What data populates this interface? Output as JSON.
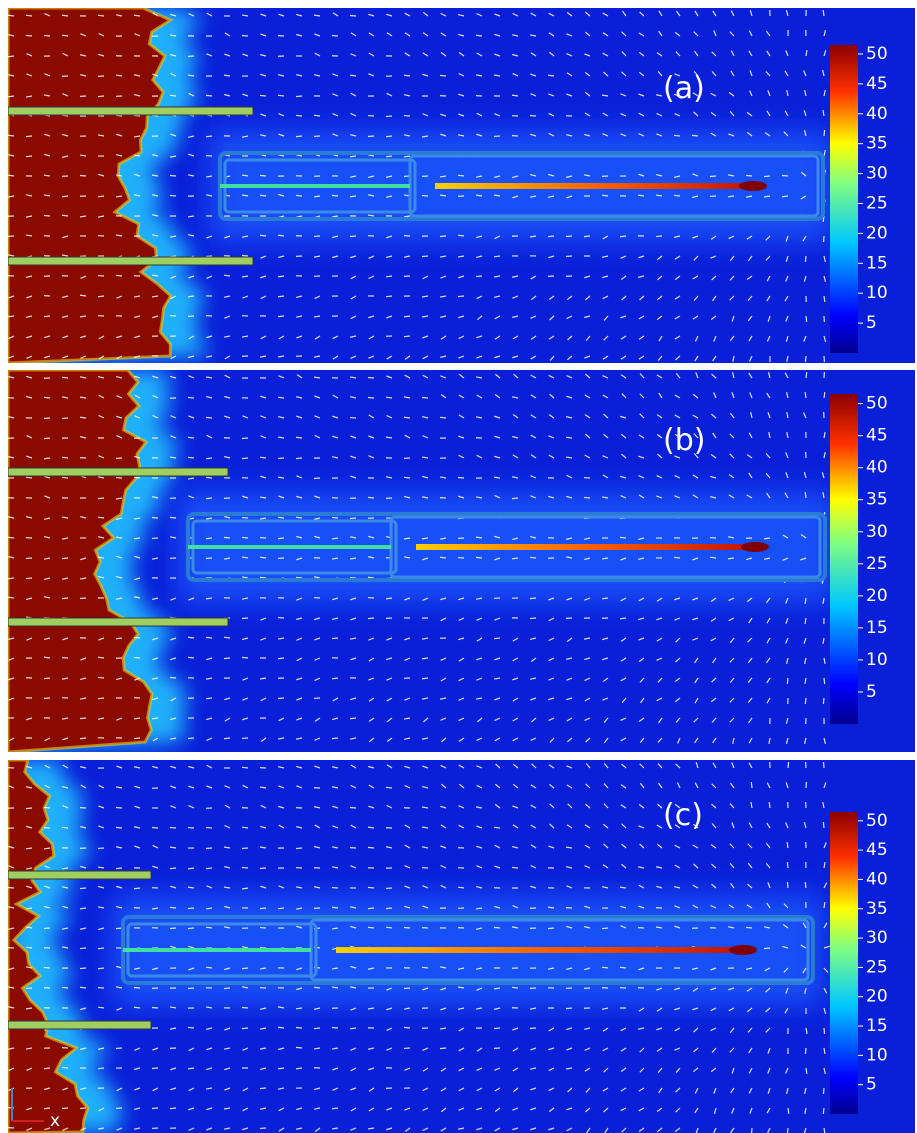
{
  "panels": [
    {
      "label": "(a)",
      "colorbar_ticks": [
        50,
        45,
        40,
        35,
        30,
        25,
        20,
        15,
        10,
        5
      ]
    },
    {
      "label": "(b)",
      "colorbar_ticks": [
        50,
        45,
        40,
        35,
        30,
        25,
        20,
        15,
        10,
        5
      ]
    },
    {
      "label": "(c)",
      "colorbar_ticks": [
        50,
        45,
        40,
        35,
        30,
        25,
        20,
        15,
        10,
        5
      ],
      "axis_label": "x"
    }
  ]
}
